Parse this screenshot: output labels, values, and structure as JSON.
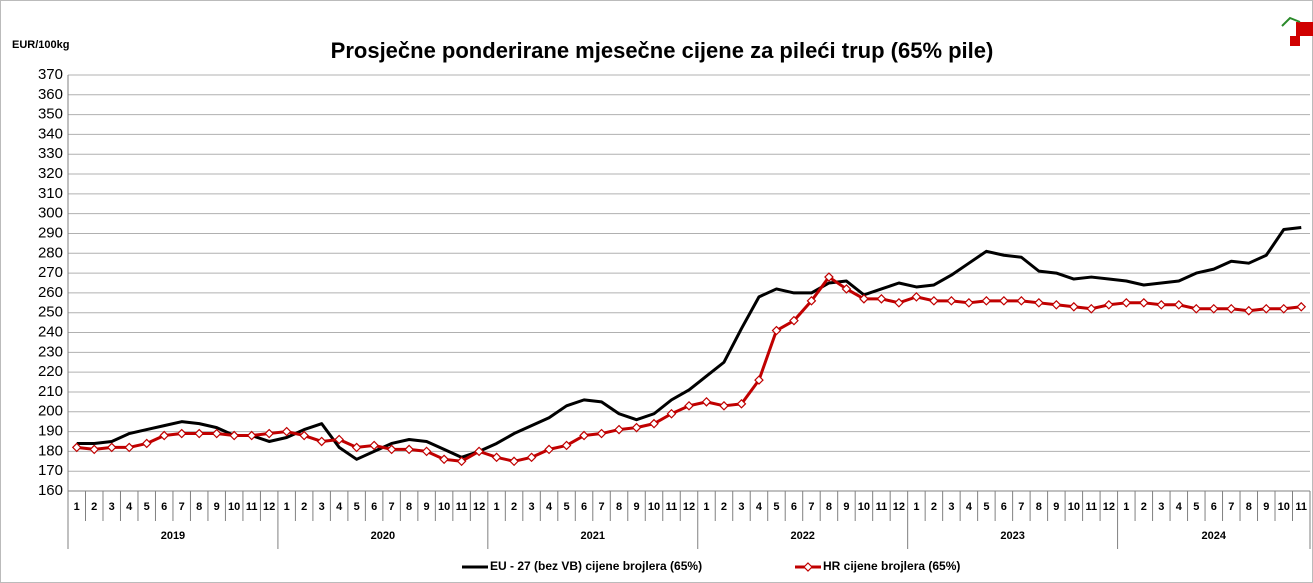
{
  "chart_data": {
    "type": "line",
    "title": "Prosječne ponderirane mjesečne cijene za pileći trup (65% pile)",
    "y_axis_label": "EUR/100kg",
    "categories": [
      "1",
      "2",
      "3",
      "4",
      "5",
      "6",
      "7",
      "8",
      "9",
      "10",
      "11",
      "12",
      "1",
      "2",
      "3",
      "4",
      "5",
      "6",
      "7",
      "8",
      "9",
      "10",
      "11",
      "12",
      "1",
      "2",
      "3",
      "4",
      "5",
      "6",
      "7",
      "8",
      "9",
      "10",
      "11",
      "12",
      "1",
      "2",
      "3",
      "4",
      "5",
      "6",
      "7",
      "8",
      "9",
      "10",
      "11",
      "12",
      "1",
      "2",
      "3",
      "4",
      "5",
      "6",
      "7",
      "8",
      "9",
      "10",
      "11",
      "12",
      "1",
      "2",
      "3",
      "4",
      "5",
      "6",
      "7",
      "8",
      "9",
      "10",
      "11"
    ],
    "years": [
      "2019",
      "2020",
      "2021",
      "2022",
      "2023",
      "2024"
    ],
    "series": [
      {
        "name": "EU - 27 (bez VB) cijene brojlera (65%)",
        "color": "#000000",
        "marker": "none",
        "values": [
          184,
          184,
          185,
          189,
          191,
          193,
          195,
          194,
          192,
          188,
          188,
          185,
          187,
          191,
          194,
          182,
          176,
          180,
          184,
          186,
          185,
          181,
          177,
          180,
          184,
          189,
          193,
          197,
          203,
          206,
          205,
          199,
          196,
          199,
          206,
          211,
          218,
          225,
          242,
          258,
          262,
          260,
          260,
          265,
          266,
          259,
          262,
          265,
          263,
          264,
          269,
          275,
          281,
          279,
          278,
          271,
          270,
          267,
          268,
          267,
          266,
          264,
          265,
          266,
          270,
          272,
          276,
          275,
          279,
          292,
          293
        ]
      },
      {
        "name": "HR cijene brojlera (65%)",
        "color": "#c00000",
        "marker": "diamond",
        "values": [
          182,
          181,
          182,
          182,
          184,
          188,
          189,
          189,
          189,
          188,
          188,
          189,
          190,
          188,
          185,
          186,
          182,
          183,
          181,
          181,
          180,
          176,
          175,
          180,
          177,
          175,
          177,
          181,
          183,
          188,
          189,
          191,
          192,
          194,
          199,
          203,
          205,
          203,
          204,
          216,
          241,
          246,
          256,
          268,
          262,
          257,
          257,
          255,
          258,
          256,
          256,
          255,
          256,
          256,
          256,
          255,
          254,
          253,
          252,
          254,
          255,
          255,
          254,
          254,
          252,
          252,
          252,
          251,
          252,
          252,
          253
        ]
      }
    ],
    "ylim": [
      160,
      370
    ],
    "yticks": [
      160,
      170,
      180,
      190,
      200,
      210,
      220,
      230,
      240,
      250,
      260,
      270,
      280,
      290,
      300,
      310,
      320,
      330,
      340,
      350,
      360,
      370
    ],
    "grid": true,
    "legend": "bottom"
  }
}
